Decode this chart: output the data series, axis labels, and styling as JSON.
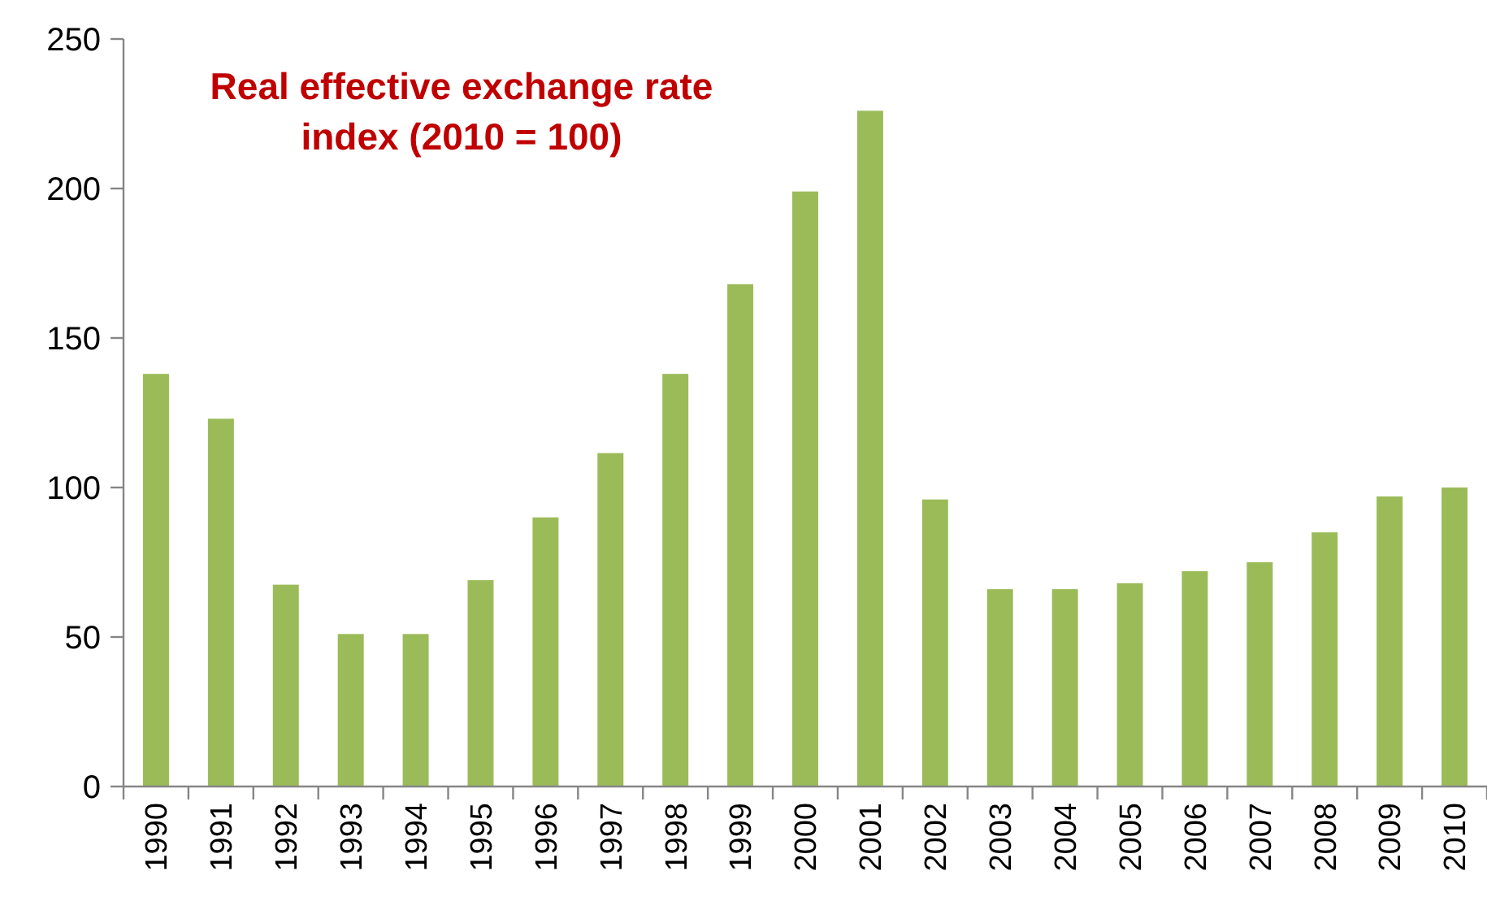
{
  "chart_data": {
    "type": "bar",
    "title": "Real effective exchange rate index (2010 = 100)",
    "categories": [
      "1990",
      "1991",
      "1992",
      "1993",
      "1994",
      "1995",
      "1996",
      "1997",
      "1998",
      "1999",
      "2000",
      "2001",
      "2002",
      "2003",
      "2004",
      "2005",
      "2006",
      "2007",
      "2008",
      "2009",
      "2010"
    ],
    "values": [
      138,
      123,
      67.5,
      51,
      51,
      69,
      90,
      111.5,
      138,
      168,
      199,
      226,
      96,
      66,
      66,
      68,
      72,
      75,
      85,
      97,
      100
    ],
    "color": "#9bbb59",
    "ylim": [
      0,
      250
    ],
    "yticks": [
      0,
      50,
      100,
      150,
      200,
      250
    ]
  }
}
